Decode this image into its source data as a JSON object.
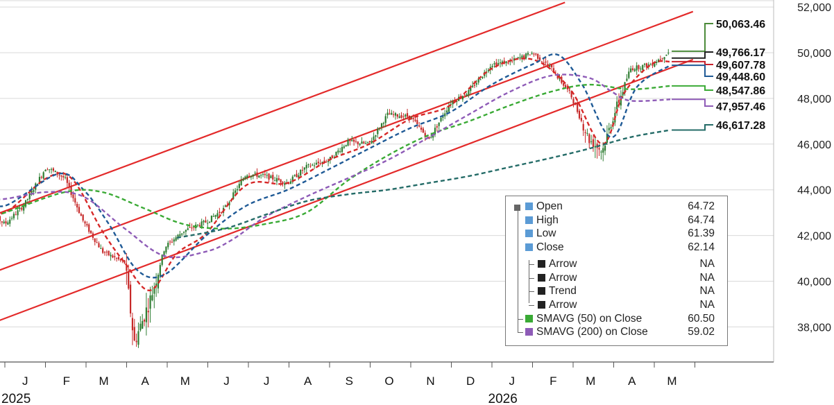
{
  "chart_data": {
    "type": "candlestick",
    "title": "",
    "xlabel": "",
    "ylabel": "",
    "ylim": [
      36500,
      52300
    ],
    "y_ticks": [
      "38,000",
      "40,000",
      "42,000",
      "44,000",
      "46,000",
      "48,000",
      "50,000",
      "52,000"
    ],
    "y_tick_values": [
      38000,
      40000,
      42000,
      44000,
      46000,
      48000,
      50000,
      52000
    ],
    "x_months": [
      {
        "label": "J",
        "date": "2025-01"
      },
      {
        "label": "F",
        "date": "2025-02"
      },
      {
        "label": "M",
        "date": "2025-03"
      },
      {
        "label": "A",
        "date": "2025-04"
      },
      {
        "label": "M",
        "date": "2025-05"
      },
      {
        "label": "J",
        "date": "2025-06"
      },
      {
        "label": "J",
        "date": "2025-07"
      },
      {
        "label": "A",
        "date": "2025-08"
      },
      {
        "label": "S",
        "date": "2025-09"
      },
      {
        "label": "O",
        "date": "2025-10"
      },
      {
        "label": "N",
        "date": "2025-11"
      },
      {
        "label": "D",
        "date": "2025-12"
      },
      {
        "label": "J",
        "date": "2026-01"
      },
      {
        "label": "F",
        "date": "2026-02"
      },
      {
        "label": "M",
        "date": "2026-03"
      },
      {
        "label": "A",
        "date": "2026-04"
      },
      {
        "label": "M",
        "date": "2026-05"
      }
    ],
    "year_labels": [
      {
        "label": "2025",
        "date": "2025-01"
      },
      {
        "label": "2026",
        "date": "2026-01"
      }
    ],
    "price_path": [
      {
        "date": "2024-12-15",
        "value": 43300
      },
      {
        "date": "2025-01-01",
        "value": 42500
      },
      {
        "date": "2025-01-15",
        "value": 43300
      },
      {
        "date": "2025-02-01",
        "value": 45000
      },
      {
        "date": "2025-02-15",
        "value": 44500
      },
      {
        "date": "2025-03-01",
        "value": 42600
      },
      {
        "date": "2025-03-15",
        "value": 41300
      },
      {
        "date": "2025-04-01",
        "value": 40800
      },
      {
        "date": "2025-04-08",
        "value": 37300
      },
      {
        "date": "2025-04-20",
        "value": 39200
      },
      {
        "date": "2025-05-01",
        "value": 41500
      },
      {
        "date": "2025-05-15",
        "value": 42200
      },
      {
        "date": "2025-06-01",
        "value": 42600
      },
      {
        "date": "2025-06-15",
        "value": 43200
      },
      {
        "date": "2025-07-01",
        "value": 44700
      },
      {
        "date": "2025-07-15",
        "value": 44600
      },
      {
        "date": "2025-08-01",
        "value": 44300
      },
      {
        "date": "2025-08-15",
        "value": 45000
      },
      {
        "date": "2025-09-01",
        "value": 45300
      },
      {
        "date": "2025-09-15",
        "value": 46100
      },
      {
        "date": "2025-10-01",
        "value": 46000
      },
      {
        "date": "2025-10-15",
        "value": 47300
      },
      {
        "date": "2025-11-01",
        "value": 47200
      },
      {
        "date": "2025-11-15",
        "value": 46200
      },
      {
        "date": "2025-12-01",
        "value": 47800
      },
      {
        "date": "2025-12-15",
        "value": 48300
      },
      {
        "date": "2026-01-01",
        "value": 49500
      },
      {
        "date": "2026-01-15",
        "value": 49600
      },
      {
        "date": "2026-02-01",
        "value": 50000
      },
      {
        "date": "2026-02-15",
        "value": 49300
      },
      {
        "date": "2026-03-01",
        "value": 48200
      },
      {
        "date": "2026-03-15",
        "value": 46200
      },
      {
        "date": "2026-03-25",
        "value": 45700
      },
      {
        "date": "2026-04-01",
        "value": 47000
      },
      {
        "date": "2026-04-15",
        "value": 49300
      },
      {
        "date": "2026-05-01",
        "value": 49500
      },
      {
        "date": "2026-05-15",
        "value": 50063
      }
    ],
    "series": [
      {
        "key": "sma_fast",
        "color": "#d62828",
        "dash": true,
        "points": [
          {
            "date": "2024-12-15",
            "value": 43300
          },
          {
            "date": "2025-01-01",
            "value": 43000
          },
          {
            "date": "2025-02-01",
            "value": 44500
          },
          {
            "date": "2025-02-20",
            "value": 44500
          },
          {
            "date": "2025-03-15",
            "value": 42200
          },
          {
            "date": "2025-04-01",
            "value": 40800
          },
          {
            "date": "2025-04-20",
            "value": 39600
          },
          {
            "date": "2025-05-10",
            "value": 41200
          },
          {
            "date": "2025-06-01",
            "value": 42100
          },
          {
            "date": "2025-07-01",
            "value": 44200
          },
          {
            "date": "2025-08-01",
            "value": 44300
          },
          {
            "date": "2025-09-01",
            "value": 45300
          },
          {
            "date": "2025-10-01",
            "value": 46000
          },
          {
            "date": "2025-11-01",
            "value": 47100
          },
          {
            "date": "2025-12-01",
            "value": 47700
          },
          {
            "date": "2026-01-01",
            "value": 49300
          },
          {
            "date": "2026-02-01",
            "value": 49700
          },
          {
            "date": "2026-03-01",
            "value": 48400
          },
          {
            "date": "2026-03-25",
            "value": 46000
          },
          {
            "date": "2026-04-10",
            "value": 48200
          },
          {
            "date": "2026-05-01",
            "value": 49500
          },
          {
            "date": "2026-05-15",
            "value": 49608
          }
        ]
      },
      {
        "key": "sma_20",
        "color": "#1f5a96",
        "dash": true,
        "points": [
          {
            "date": "2024-12-15",
            "value": 43800
          },
          {
            "date": "2025-01-01",
            "value": 43300
          },
          {
            "date": "2025-02-10",
            "value": 44700
          },
          {
            "date": "2025-03-01",
            "value": 44000
          },
          {
            "date": "2025-03-20",
            "value": 42500
          },
          {
            "date": "2025-04-10",
            "value": 40500
          },
          {
            "date": "2025-05-01",
            "value": 40300
          },
          {
            "date": "2025-06-01",
            "value": 42000
          },
          {
            "date": "2025-07-01",
            "value": 43300
          },
          {
            "date": "2025-08-01",
            "value": 44000
          },
          {
            "date": "2025-09-01",
            "value": 44900
          },
          {
            "date": "2025-10-01",
            "value": 45800
          },
          {
            "date": "2025-11-01",
            "value": 46700
          },
          {
            "date": "2025-12-01",
            "value": 47400
          },
          {
            "date": "2026-01-01",
            "value": 48600
          },
          {
            "date": "2026-02-01",
            "value": 49500
          },
          {
            "date": "2026-02-20",
            "value": 49900
          },
          {
            "date": "2026-03-10",
            "value": 48600
          },
          {
            "date": "2026-04-01",
            "value": 46300
          },
          {
            "date": "2026-04-20",
            "value": 48500
          },
          {
            "date": "2026-05-15",
            "value": 49449
          }
        ]
      },
      {
        "key": "sma_green",
        "color": "#3aaa35",
        "dash": true,
        "points": [
          {
            "date": "2024-12-15",
            "value": 42700
          },
          {
            "date": "2025-01-01",
            "value": 43000
          },
          {
            "date": "2025-02-15",
            "value": 43900
          },
          {
            "date": "2025-03-15",
            "value": 43900
          },
          {
            "date": "2025-04-15",
            "value": 43200
          },
          {
            "date": "2025-05-15",
            "value": 42500
          },
          {
            "date": "2025-06-15",
            "value": 42300
          },
          {
            "date": "2025-07-15",
            "value": 42500
          },
          {
            "date": "2025-08-15",
            "value": 43000
          },
          {
            "date": "2025-09-15",
            "value": 44400
          },
          {
            "date": "2025-10-15",
            "value": 45500
          },
          {
            "date": "2025-11-15",
            "value": 46400
          },
          {
            "date": "2025-12-15",
            "value": 47000
          },
          {
            "date": "2026-01-15",
            "value": 47700
          },
          {
            "date": "2026-02-15",
            "value": 48300
          },
          {
            "date": "2026-03-15",
            "value": 48600
          },
          {
            "date": "2026-04-15",
            "value": 48400
          },
          {
            "date": "2026-05-15",
            "value": 48548
          }
        ]
      },
      {
        "key": "sma_purple",
        "color": "#8e5bb7",
        "dash": true,
        "points": [
          {
            "date": "2024-12-15",
            "value": 43600
          },
          {
            "date": "2025-01-01",
            "value": 43600
          },
          {
            "date": "2025-02-01",
            "value": 43900
          },
          {
            "date": "2025-03-01",
            "value": 43700
          },
          {
            "date": "2025-04-01",
            "value": 42300
          },
          {
            "date": "2025-05-01",
            "value": 41100
          },
          {
            "date": "2025-06-01",
            "value": 41300
          },
          {
            "date": "2025-06-20",
            "value": 41800
          },
          {
            "date": "2025-07-15",
            "value": 42800
          },
          {
            "date": "2025-08-15",
            "value": 43700
          },
          {
            "date": "2025-09-15",
            "value": 44500
          },
          {
            "date": "2025-10-15",
            "value": 45300
          },
          {
            "date": "2025-11-15",
            "value": 46300
          },
          {
            "date": "2025-12-15",
            "value": 47300
          },
          {
            "date": "2026-01-15",
            "value": 48300
          },
          {
            "date": "2026-02-15",
            "value": 49000
          },
          {
            "date": "2026-03-15",
            "value": 48900
          },
          {
            "date": "2026-04-01",
            "value": 48300
          },
          {
            "date": "2026-04-15",
            "value": 47900
          },
          {
            "date": "2026-05-15",
            "value": 47957
          }
        ]
      },
      {
        "key": "sma_teal",
        "color": "#236b67",
        "dash": true,
        "points": [
          {
            "date": "2025-05-10",
            "value": 41900
          },
          {
            "date": "2025-06-15",
            "value": 42300
          },
          {
            "date": "2025-07-15",
            "value": 42900
          },
          {
            "date": "2025-08-15",
            "value": 43500
          },
          {
            "date": "2025-09-15",
            "value": 43800
          },
          {
            "date": "2025-10-15",
            "value": 44000
          },
          {
            "date": "2025-11-15",
            "value": 44300
          },
          {
            "date": "2025-12-15",
            "value": 44600
          },
          {
            "date": "2026-01-15",
            "value": 45000
          },
          {
            "date": "2026-02-15",
            "value": 45400
          },
          {
            "date": "2026-03-15",
            "value": 45800
          },
          {
            "date": "2026-04-15",
            "value": 46300
          },
          {
            "date": "2026-05-15",
            "value": 46617
          }
        ]
      }
    ],
    "trend_channel": [
      {
        "from": {
          "date": "2024-12-15",
          "value": 42700
        },
        "to": {
          "date": "2026-02-25",
          "value": 52200
        }
      },
      {
        "from": {
          "date": "2024-12-15",
          "value": 40200
        },
        "to": {
          "date": "2026-06-01",
          "value": 51800
        }
      },
      {
        "from": {
          "date": "2024-12-15",
          "value": 38000
        },
        "to": {
          "date": "2026-06-01",
          "value": 49700
        }
      }
    ],
    "channel_color": "#e32a2a",
    "end_labels": [
      {
        "text": "50,063.46",
        "value": 50063.46,
        "color": "#4c8a3a"
      },
      {
        "text": "49,766.17",
        "value": 49766.17,
        "color": "#222222"
      },
      {
        "text": "49,607.78",
        "value": 49607.78,
        "color": "#c8202b"
      },
      {
        "text": "49,448.60",
        "value": 49448.6,
        "color": "#1f5a96"
      },
      {
        "text": "48,547.86",
        "value": 48547.86,
        "color": "#3aaa35"
      },
      {
        "text": "47,957.46",
        "value": 47957.46,
        "color": "#8e5bb7"
      },
      {
        "text": "46,617.28",
        "value": 46617.28,
        "color": "#236b67"
      }
    ],
    "candle_up_color": "#2e7d32",
    "candle_down_color": "#c62828",
    "legend": {
      "placement": "bottom-right",
      "rows": [
        {
          "name": "Open",
          "value": "64.72",
          "swatch": "#5b9bd5",
          "level": 0
        },
        {
          "name": "High",
          "value": "64.74",
          "swatch": "#5b9bd5",
          "level": 0
        },
        {
          "name": "Low",
          "value": "61.39",
          "swatch": "#5b9bd5",
          "level": 0
        },
        {
          "name": "Close",
          "value": "62.14",
          "swatch": "#5b9bd5",
          "level": 0
        },
        {
          "name": "Arrow",
          "value": "NA",
          "swatch": "#222222",
          "level": 1
        },
        {
          "name": "Arrow",
          "value": "NA",
          "swatch": "#222222",
          "level": 1
        },
        {
          "name": "Trend",
          "value": "NA",
          "swatch": "#222222",
          "level": 1
        },
        {
          "name": "Arrow",
          "value": "NA",
          "swatch": "#222222",
          "level": 1
        },
        {
          "name": "SMAVG (50) on Close",
          "value": "60.50",
          "swatch": "#3aaa35",
          "level": 0
        },
        {
          "name": "SMAVG (200) on Close",
          "value": "59.02",
          "swatch": "#8e5bb7",
          "level": 0
        }
      ]
    }
  }
}
